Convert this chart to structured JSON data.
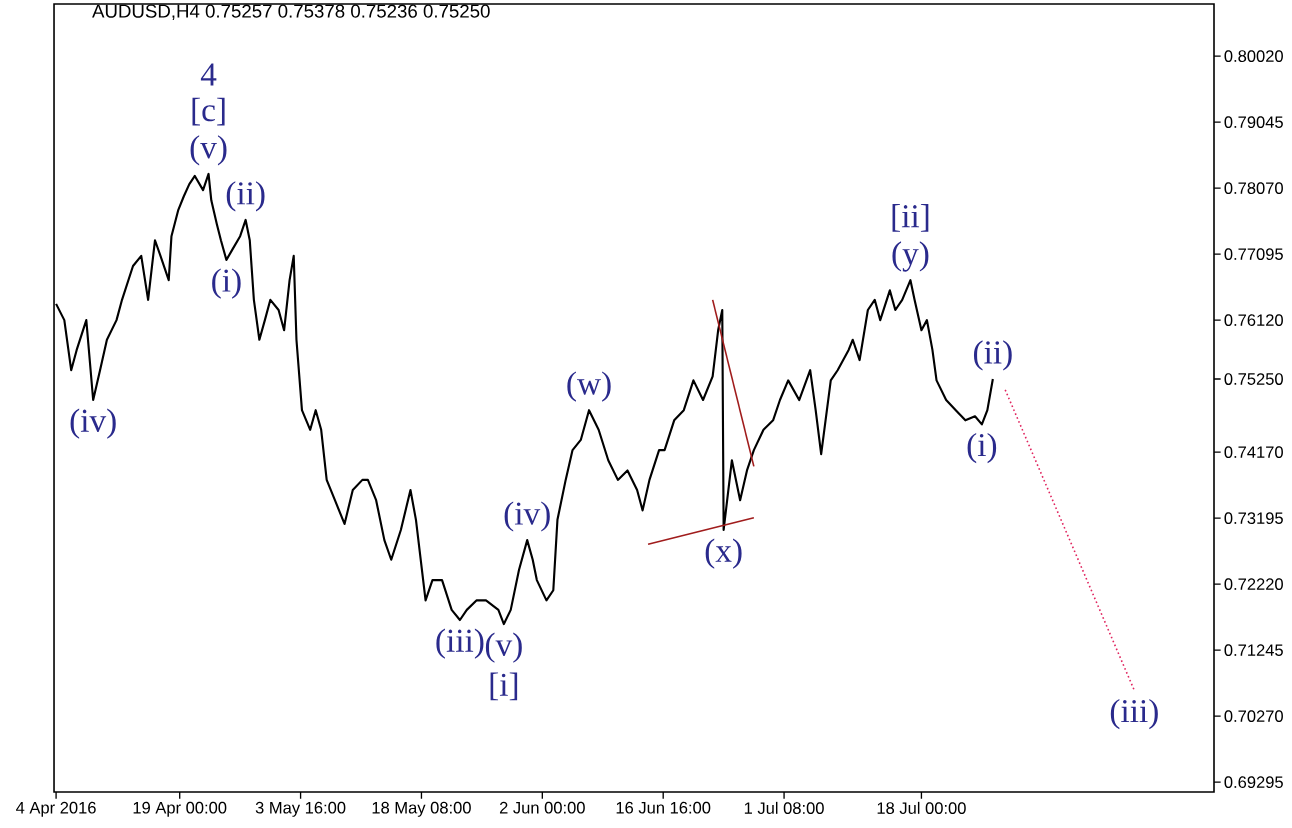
{
  "chart_data": {
    "type": "line",
    "title": "AUDUSD,H4  0.75257 0.75378 0.75236 0.75250",
    "xlim": [
      "2016-04-03T18:00",
      "2016-08-22T12:00"
    ],
    "ylim": [
      0.6915,
      0.8079
    ],
    "xticks": [
      {
        "value": "2016-04-04T00:00",
        "label": "4 Apr 2016"
      },
      {
        "value": "2016-04-19T00:00",
        "label": "19 Apr 00:00"
      },
      {
        "value": "2016-05-03T16:00",
        "label": "3 May 16:00"
      },
      {
        "value": "2016-05-18T08:00",
        "label": "18 May 08:00"
      },
      {
        "value": "2016-06-02T00:00",
        "label": "2 Jun 00:00"
      },
      {
        "value": "2016-06-16T16:00",
        "label": "16 Jun 16:00"
      },
      {
        "value": "2016-07-01T08:00",
        "label": "1 Jul 08:00"
      },
      {
        "value": "2016-07-18T00:00",
        "label": "18 Jul 00:00"
      }
    ],
    "yticks": [
      {
        "value": 0.69295,
        "label": "0.69295"
      },
      {
        "value": 0.7027,
        "label": "0.70270"
      },
      {
        "value": 0.71245,
        "label": "0.71245"
      },
      {
        "value": 0.7222,
        "label": "0.72220"
      },
      {
        "value": 0.73195,
        "label": "0.73195"
      },
      {
        "value": 0.7417,
        "label": "0.74170"
      },
      {
        "value": 0.7525,
        "label": "0.75250"
      },
      {
        "value": 0.7612,
        "label": "0.76120"
      },
      {
        "value": 0.77095,
        "label": "0.77095"
      },
      {
        "value": 0.7807,
        "label": "0.78070"
      },
      {
        "value": 0.79045,
        "label": "0.79045"
      },
      {
        "value": 0.8002,
        "label": "0.80020"
      }
    ],
    "series": [
      {
        "color": "#000000",
        "x": [
          "2016-04-04T00:00",
          "2016-04-05T00:00",
          "2016-04-05T20:00",
          "2016-04-06T12:00",
          "2016-04-07T16:00",
          "2016-04-08T12:00",
          "2016-04-09T08:00",
          "2016-04-10T04:00",
          "2016-04-11T08:00",
          "2016-04-12T00:00",
          "2016-04-13T08:00",
          "2016-04-14T08:00",
          "2016-04-15T04:00",
          "2016-04-16T00:00",
          "2016-04-16T16:00",
          "2016-04-17T16:00",
          "2016-04-18T00:00",
          "2016-04-18T20:00",
          "2016-04-19T12:00",
          "2016-04-20T04:00",
          "2016-04-20T20:00",
          "2016-04-21T20:00",
          "2016-04-22T12:00",
          "2016-04-22T20:00",
          "2016-04-23T12:00",
          "2016-04-24T00:00",
          "2016-04-24T16:00",
          "2016-04-25T08:00",
          "2016-04-26T08:00",
          "2016-04-27T00:00",
          "2016-04-27T12:00",
          "2016-04-28T00:00",
          "2016-04-28T16:00",
          "2016-04-29T08:00",
          "2016-04-30T00:00",
          "2016-05-01T00:00",
          "2016-05-01T16:00",
          "2016-05-02T08:00",
          "2016-05-02T20:00",
          "2016-05-03T04:00",
          "2016-05-03T20:00",
          "2016-05-04T20:00",
          "2016-05-05T12:00",
          "2016-05-06T04:00",
          "2016-05-06T20:00",
          "2016-05-07T20:00",
          "2016-05-09T00:00",
          "2016-05-10T00:00",
          "2016-05-11T04:00",
          "2016-05-11T20:00",
          "2016-05-12T20:00",
          "2016-05-13T20:00",
          "2016-05-14T16:00",
          "2016-05-15T20:00",
          "2016-05-17T00:00",
          "2016-05-17T16:00",
          "2016-05-18T20:00",
          "2016-05-19T16:00",
          "2016-05-20T20:00",
          "2016-05-22T00:00",
          "2016-05-23T00:00",
          "2016-05-23T20:00",
          "2016-05-25T00:00",
          "2016-05-26T04:00",
          "2016-05-27T16:00",
          "2016-05-28T08:00",
          "2016-05-29T04:00",
          "2016-05-30T04:00",
          "2016-05-31T04:00",
          "2016-05-31T20:00",
          "2016-06-01T08:00",
          "2016-06-02T12:00",
          "2016-06-03T08:00",
          "2016-06-03T20:00",
          "2016-06-04T20:00",
          "2016-06-05T16:00",
          "2016-06-06T16:00",
          "2016-06-07T16:00",
          "2016-06-08T20:00",
          "2016-06-10T00:00",
          "2016-06-11T04:00",
          "2016-06-12T08:00",
          "2016-06-13T12:00",
          "2016-06-14T04:00",
          "2016-06-15T00:00",
          "2016-06-16T04:00",
          "2016-06-16T20:00",
          "2016-06-18T00:00",
          "2016-06-19T04:00",
          "2016-06-20T08:00",
          "2016-06-21T12:00",
          "2016-06-22T16:00",
          "2016-06-23T08:00",
          "2016-06-23T20:00",
          "2016-06-24T00:00",
          "2016-06-25T00:00",
          "2016-06-26T00:00",
          "2016-06-26T20:00",
          "2016-06-27T16:00",
          "2016-06-28T20:00",
          "2016-06-30T00:00",
          "2016-06-30T20:00",
          "2016-07-01T20:00",
          "2016-07-03T04:00",
          "2016-07-04T12:00",
          "2016-07-05T04:00",
          "2016-07-05T20:00",
          "2016-07-07T00:00",
          "2016-07-07T20:00",
          "2016-07-09T04:00",
          "2016-07-09T16:00",
          "2016-07-10T12:00",
          "2016-07-11T12:00",
          "2016-07-12T08:00",
          "2016-07-13T00:00",
          "2016-07-14T04:00",
          "2016-07-14T20:00",
          "2016-07-15T16:00",
          "2016-07-16T16:00",
          "2016-07-17T04:00",
          "2016-07-18T00:00",
          "2016-07-18T16:00",
          "2016-07-19T08:00",
          "2016-07-19T20:00",
          "2016-07-21T00:00",
          "2016-07-22T04:00",
          "2016-07-23T08:00",
          "2016-07-24T12:00",
          "2016-07-25T08:00",
          "2016-07-26T00:00",
          "2016-07-26T16:00"
        ],
        "values": [
          0.7636,
          0.7612,
          0.7538,
          0.7568,
          0.7612,
          0.7494,
          0.7538,
          0.7583,
          0.7612,
          0.7642,
          0.7692,
          0.7707,
          0.7642,
          0.773,
          0.7707,
          0.7671,
          0.7736,
          0.7775,
          0.7795,
          0.7813,
          0.7825,
          0.7804,
          0.7828,
          0.7789,
          0.7754,
          0.773,
          0.7701,
          0.7715,
          0.7736,
          0.776,
          0.773,
          0.7642,
          0.7583,
          0.7612,
          0.7642,
          0.7627,
          0.7597,
          0.7671,
          0.7707,
          0.7583,
          0.7479,
          0.745,
          0.7479,
          0.745,
          0.7376,
          0.7346,
          0.7311,
          0.7361,
          0.7376,
          0.7376,
          0.7346,
          0.7287,
          0.7258,
          0.7302,
          0.7361,
          0.7317,
          0.7198,
          0.7228,
          0.7228,
          0.7184,
          0.7169,
          0.7184,
          0.7198,
          0.7198,
          0.7184,
          0.7163,
          0.7184,
          0.7243,
          0.7287,
          0.7258,
          0.7228,
          0.7198,
          0.7213,
          0.7317,
          0.7376,
          0.742,
          0.7435,
          0.7479,
          0.745,
          0.7405,
          0.7376,
          0.739,
          0.7361,
          0.7331,
          0.7376,
          0.742,
          0.742,
          0.7464,
          0.7479,
          0.7523,
          0.7494,
          0.7529,
          0.7597,
          0.7627,
          0.7302,
          0.7405,
          0.7346,
          0.739,
          0.742,
          0.745,
          0.7464,
          0.7494,
          0.7523,
          0.7494,
          0.7538,
          0.7479,
          0.7414,
          0.7523,
          0.7538,
          0.7568,
          0.7583,
          0.7553,
          0.7627,
          0.7642,
          0.7612,
          0.7656,
          0.7627,
          0.7642,
          0.7671,
          0.7642,
          0.7597,
          0.7612,
          0.7568,
          0.7523,
          0.7494,
          0.7479,
          0.7464,
          0.747,
          0.7458,
          0.7479,
          0.7525
        ]
      },
      {
        "color": "#a01c1c",
        "x": [
          "2016-06-14T20:00",
          "2016-06-27T16:00"
        ],
        "values": [
          0.7281,
          0.732
        ]
      },
      {
        "color": "#a01c1c",
        "x": [
          "2016-06-22T16:00",
          "2016-06-27T16:00"
        ],
        "values": [
          0.7642,
          0.7396
        ]
      },
      {
        "color": "#e0245e",
        "line_style": "dotted",
        "x": [
          "2016-07-28T04:00",
          "2016-08-12T20:00"
        ],
        "values": [
          0.7509,
          0.7065
        ]
      }
    ],
    "annotations": [
      {
        "text": "(v)",
        "x": "2016-04-22T12:00",
        "y": 0.7828
      },
      {
        "text": "[c]",
        "x": "2016-04-22T12:00",
        "y": 0.7828
      },
      {
        "text": "4",
        "x": "2016-04-22T12:00",
        "y": 0.7828
      },
      {
        "text": "(ii)",
        "x": "2016-04-27T00:00",
        "y": 0.776
      },
      {
        "text": "(i)",
        "x": "2016-04-24T16:00",
        "y": 0.7701
      },
      {
        "text": "(iv)",
        "x": "2016-04-08T12:00",
        "y": 0.7494
      },
      {
        "text": "(iii)",
        "x": "2016-05-23T00:00",
        "y": 0.7169
      },
      {
        "text": "(iv)",
        "x": "2016-05-31T04:00",
        "y": 0.7287
      },
      {
        "text": "(v)",
        "x": "2016-05-28T08:00",
        "y": 0.7163
      },
      {
        "text": "[i]",
        "x": "2016-05-28T08:00",
        "y": 0.7163
      },
      {
        "text": "(w)",
        "x": "2016-06-07T16:00",
        "y": 0.7479
      },
      {
        "text": "(x)",
        "x": "2016-06-24T00:00",
        "y": 0.7302
      },
      {
        "text": "(y)",
        "x": "2016-07-16T16:00",
        "y": 0.7671
      },
      {
        "text": "[ii]",
        "x": "2016-07-16T16:00",
        "y": 0.7671
      },
      {
        "text": "(i)",
        "x": "2016-07-25T08:00",
        "y": 0.7458
      },
      {
        "text": "(ii)",
        "x": "2016-07-26T16:00",
        "y": 0.7525
      },
      {
        "text": "(iii)",
        "x": "2016-08-12T20:00",
        "y": 0.7065
      }
    ]
  }
}
